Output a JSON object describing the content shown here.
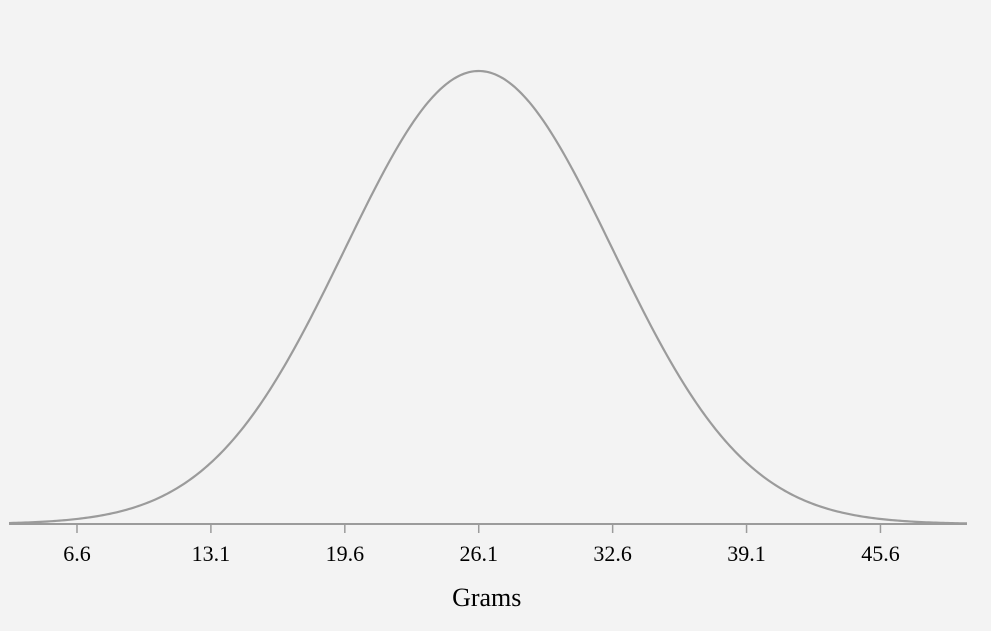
{
  "chart_data": {
    "type": "line",
    "title": "",
    "xlabel": "Grams",
    "ylabel": "",
    "distribution": "normal",
    "mean": 26.1,
    "std_dev": 6.5,
    "xlim": [
      3.3,
      49.8
    ],
    "x_ticks": [
      6.6,
      13.1,
      19.6,
      26.1,
      32.6,
      39.1,
      45.6
    ],
    "x_tick_labels": [
      "6.6",
      "13.1",
      "19.6",
      "26.1",
      "32.6",
      "39.1",
      "45.6"
    ],
    "grid": false,
    "legend": "none",
    "colors": {
      "background": "#f3f3f3",
      "curve": "#9b9b9b",
      "axis": "#9b9b9b",
      "text": "#000000"
    }
  }
}
